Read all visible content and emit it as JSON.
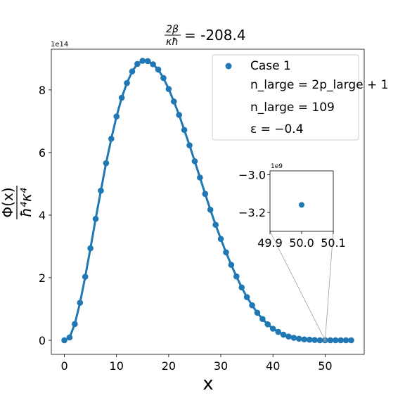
{
  "chart_data": {
    "type": "scatter",
    "title_num": "2β",
    "title_den": "κħ",
    "title_value": "= -208.4",
    "xlabel": "x",
    "ylabel_num": "Φ(x)",
    "ylabel_den": "ħ⁴κ⁴",
    "y_offset_label": "1e14",
    "xlim": [
      -2.5,
      57.5
    ],
    "ylim": [
      -0.45,
      9.3
    ],
    "xticks": [
      0,
      10,
      20,
      30,
      40,
      50
    ],
    "yticks": [
      0,
      2,
      4,
      6,
      8
    ],
    "series": [
      {
        "name": "Case 1",
        "color": "#1f77b4",
        "x": [
          0,
          1,
          2,
          3,
          4,
          5,
          6,
          7,
          8,
          9,
          10,
          11,
          12,
          13,
          14,
          15,
          16,
          17,
          18,
          19,
          20,
          21,
          22,
          23,
          24,
          25,
          26,
          27,
          28,
          29,
          30,
          31,
          32,
          33,
          34,
          35,
          36,
          37,
          38,
          39,
          40,
          41,
          42,
          43,
          44,
          45,
          46,
          47,
          48,
          49,
          50,
          51,
          52,
          53,
          54,
          55
        ],
        "y": [
          0.0,
          0.09,
          0.52,
          1.2,
          2.03,
          2.94,
          3.88,
          4.78,
          5.66,
          6.44,
          7.15,
          7.75,
          8.22,
          8.59,
          8.83,
          8.93,
          8.92,
          8.82,
          8.65,
          8.38,
          8.03,
          7.63,
          7.2,
          6.72,
          6.23,
          5.72,
          5.2,
          4.68,
          4.17,
          3.69,
          3.24,
          2.81,
          2.41,
          2.04,
          1.69,
          1.38,
          1.12,
          0.88,
          0.68,
          0.51,
          0.37,
          0.27,
          0.18,
          0.12,
          0.08,
          0.05,
          0.03,
          0.02,
          0.01,
          0.0,
          0.0,
          0.0,
          0.0,
          0.0,
          0.0,
          0.0
        ]
      }
    ],
    "legend": {
      "placement": "upper right",
      "entries": [
        "Case 1",
        "n_large = 2p_large + 1",
        "n_large = 109",
        "ε = −0.4"
      ]
    },
    "inset": {
      "xlim": [
        49.9,
        50.1
      ],
      "ylim": [
        -3.3,
        -2.98
      ],
      "xticks": [
        "49.9",
        "50.0",
        "50.1"
      ],
      "yticks": [
        "−3.0",
        "−3.2"
      ],
      "offset_label": "1e9",
      "point": {
        "x": 50.0,
        "y": -3.16
      }
    }
  }
}
